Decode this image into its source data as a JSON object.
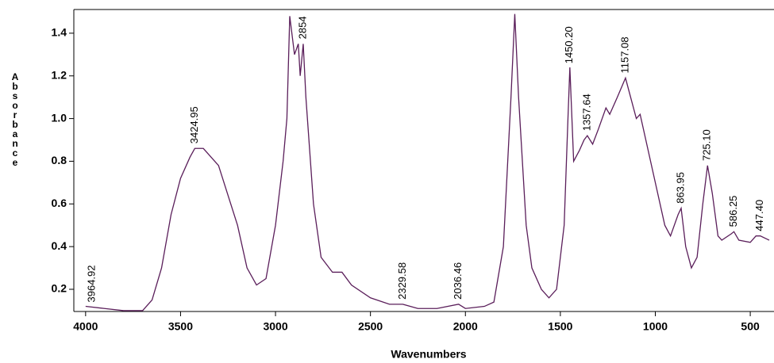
{
  "chart_data": {
    "type": "line",
    "x_label": "Wavenumbers",
    "y_label": "Absorbance",
    "color": "#5a1e5a",
    "xlim": [
      4062,
      375
    ],
    "ylim": [
      0.096,
      1.511
    ],
    "xticks": [
      4000,
      3500,
      3000,
      2500,
      2000,
      1500,
      1000,
      500
    ],
    "yticks": [
      0.2,
      0.4,
      0.6,
      0.8,
      {
        "value": 1,
        "label": "1.0"
      },
      1.2,
      1.4
    ],
    "grid": false,
    "x": [
      4000,
      3900,
      3800,
      3700,
      3650,
      3600,
      3550,
      3500,
      3450,
      3425,
      3380,
      3300,
      3200,
      3150,
      3100,
      3050,
      3000,
      2960,
      2940,
      2925,
      2900,
      2880,
      2870,
      2854,
      2840,
      2800,
      2760,
      2700,
      2650,
      2600,
      2500,
      2400,
      2330,
      2250,
      2150,
      2036,
      2000,
      1900,
      1850,
      1800,
      1760,
      1740,
      1720,
      1680,
      1650,
      1600,
      1560,
      1520,
      1480,
      1460,
      1450,
      1430,
      1400,
      1375,
      1358,
      1330,
      1300,
      1260,
      1240,
      1200,
      1157,
      1130,
      1100,
      1080,
      1050,
      1000,
      950,
      920,
      880,
      864,
      840,
      810,
      780,
      750,
      725,
      700,
      670,
      650,
      600,
      586,
      560,
      500,
      470,
      447,
      400
    ],
    "values": [
      0.12,
      0.11,
      0.1,
      0.1,
      0.15,
      0.3,
      0.55,
      0.72,
      0.82,
      0.86,
      0.86,
      0.78,
      0.5,
      0.3,
      0.22,
      0.25,
      0.5,
      0.8,
      1.0,
      1.48,
      1.3,
      1.35,
      1.2,
      1.35,
      1.1,
      0.6,
      0.35,
      0.28,
      0.28,
      0.22,
      0.16,
      0.13,
      0.13,
      0.11,
      0.11,
      0.13,
      0.11,
      0.12,
      0.14,
      0.4,
      1.1,
      1.49,
      1.1,
      0.5,
      0.3,
      0.2,
      0.16,
      0.2,
      0.5,
      1.0,
      1.24,
      0.8,
      0.85,
      0.9,
      0.92,
      0.88,
      0.95,
      1.05,
      1.02,
      1.1,
      1.19,
      1.1,
      1.0,
      1.02,
      0.9,
      0.7,
      0.5,
      0.45,
      0.55,
      0.58,
      0.4,
      0.3,
      0.35,
      0.6,
      0.78,
      0.65,
      0.45,
      0.43,
      0.46,
      0.47,
      0.43,
      0.42,
      0.45,
      0.45,
      0.43
    ],
    "annotations": [
      "3964.92",
      "3424.95",
      "2854",
      "2329.58",
      "2036.46",
      "1450.20",
      "1357.64",
      "1157.08",
      "863.95",
      "725.10",
      "586.25",
      "447.40"
    ]
  }
}
